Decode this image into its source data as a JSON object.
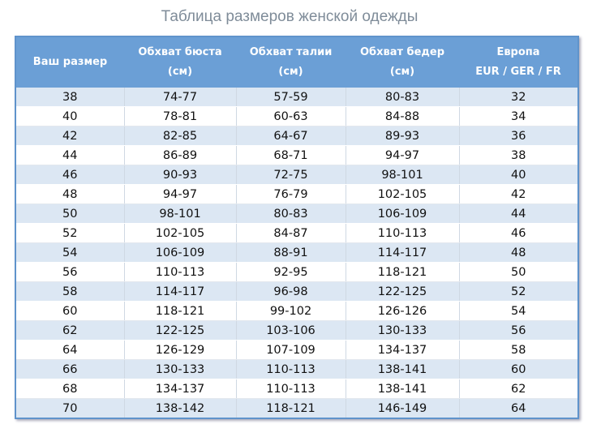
{
  "header": {
    "title": "Таблица размеров женской одежды"
  },
  "table": {
    "columns": [
      [
        "Ваш размер"
      ],
      [
        "Обхват бюста",
        "(см)"
      ],
      [
        "Обхват талии",
        "(см)"
      ],
      [
        "Обхват бедер",
        "(см)"
      ],
      [
        "Европа",
        "EUR / GER / FR"
      ]
    ],
    "rows": [
      [
        "38",
        "74-77",
        "57-59",
        "80-83",
        "32"
      ],
      [
        "40",
        "78-81",
        "60-63",
        "84-88",
        "34"
      ],
      [
        "42",
        "82-85",
        "64-67",
        "89-93",
        "36"
      ],
      [
        "44",
        "86-89",
        "68-71",
        "94-97",
        "38"
      ],
      [
        "46",
        "90-93",
        "72-75",
        "98-101",
        "40"
      ],
      [
        "48",
        "94-97",
        "76-79",
        "102-105",
        "42"
      ],
      [
        "50",
        "98-101",
        "80-83",
        "106-109",
        "44"
      ],
      [
        "52",
        "102-105",
        "84-87",
        "110-113",
        "46"
      ],
      [
        "54",
        "106-109",
        "88-91",
        "114-117",
        "48"
      ],
      [
        "56",
        "110-113",
        "92-95",
        "118-121",
        "50"
      ],
      [
        "58",
        "114-117",
        "96-98",
        "122-125",
        "52"
      ],
      [
        "60",
        "118-121",
        "99-102",
        "126-126",
        "54"
      ],
      [
        "62",
        "122-125",
        "103-106",
        "130-133",
        "56"
      ],
      [
        "64",
        "126-129",
        "107-109",
        "134-137",
        "58"
      ],
      [
        "66",
        "130-133",
        "110-113",
        "138-141",
        "60"
      ],
      [
        "68",
        "134-137",
        "110-113",
        "138-141",
        "62"
      ],
      [
        "70",
        "138-142",
        "118-121",
        "146-149",
        "64"
      ]
    ]
  }
}
